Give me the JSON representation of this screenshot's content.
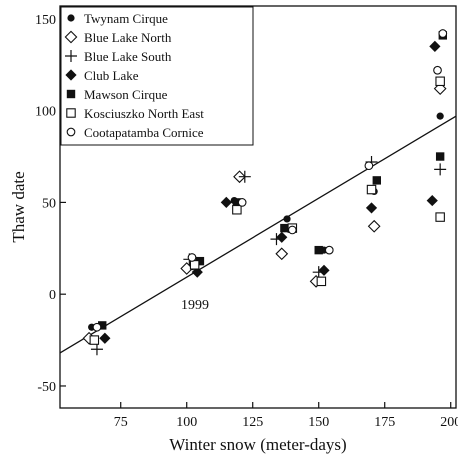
{
  "chart_data": {
    "type": "scatter",
    "xlabel": "Winter snow (meter-days)",
    "ylabel": "Thaw date",
    "xlim": [
      52,
      202
    ],
    "ylim": [
      -62,
      157
    ],
    "xticks": [
      75,
      100,
      125,
      150,
      175,
      200
    ],
    "yticks": [
      -50,
      0,
      50,
      100,
      150
    ],
    "grid": false,
    "legend_position": "top-left",
    "annotations": [
      {
        "text": "1999",
        "x": 104,
        "y": -2
      }
    ],
    "trend_line": {
      "points": [
        [
          52,
          -32
        ],
        [
          202,
          97
        ]
      ]
    },
    "series": [
      {
        "name": "Twynam Cirque",
        "marker": "filled-circle",
        "points": [
          [
            64,
            -18
          ],
          [
            102,
            15
          ],
          [
            118,
            51
          ],
          [
            138,
            41
          ],
          [
            152,
            24
          ],
          [
            171,
            56
          ],
          [
            196,
            97
          ]
        ]
      },
      {
        "name": "Blue Lake North",
        "marker": "open-diamond",
        "points": [
          [
            63,
            -24
          ],
          [
            100,
            14
          ],
          [
            120,
            64
          ],
          [
            136,
            22
          ],
          [
            149,
            7
          ],
          [
            171,
            37
          ],
          [
            196,
            112
          ]
        ]
      },
      {
        "name": "Blue Lake South",
        "marker": "plus",
        "points": [
          [
            66,
            -30
          ],
          [
            101,
            19
          ],
          [
            122,
            64
          ],
          [
            134,
            30
          ],
          [
            150,
            12
          ],
          [
            170,
            72
          ],
          [
            196,
            68
          ]
        ]
      },
      {
        "name": "Club Lake",
        "marker": "filled-diamond",
        "points": [
          [
            69,
            -24
          ],
          [
            104,
            12
          ],
          [
            115,
            50
          ],
          [
            136,
            31
          ],
          [
            152,
            13
          ],
          [
            170,
            47
          ],
          [
            193,
            51
          ],
          [
            194,
            135
          ]
        ]
      },
      {
        "name": "Mawson Cirque",
        "marker": "filled-square",
        "points": [
          [
            68,
            -17
          ],
          [
            105,
            18
          ],
          [
            119,
            50
          ],
          [
            137,
            36
          ],
          [
            150,
            24
          ],
          [
            172,
            62
          ],
          [
            196,
            75
          ],
          [
            197,
            141
          ]
        ]
      },
      {
        "name": "Kosciuszko North East",
        "marker": "open-square",
        "points": [
          [
            65,
            -25
          ],
          [
            103,
            16
          ],
          [
            119,
            46
          ],
          [
            140,
            36
          ],
          [
            151,
            7
          ],
          [
            170,
            57
          ],
          [
            196,
            42
          ],
          [
            196,
            116
          ]
        ]
      },
      {
        "name": "Cootapatamba Cornice",
        "marker": "open-circle",
        "points": [
          [
            66,
            -18
          ],
          [
            102,
            20
          ],
          [
            121,
            50
          ],
          [
            140,
            35
          ],
          [
            154,
            24
          ],
          [
            169,
            70
          ],
          [
            195,
            122
          ],
          [
            197,
            142
          ]
        ]
      }
    ]
  }
}
